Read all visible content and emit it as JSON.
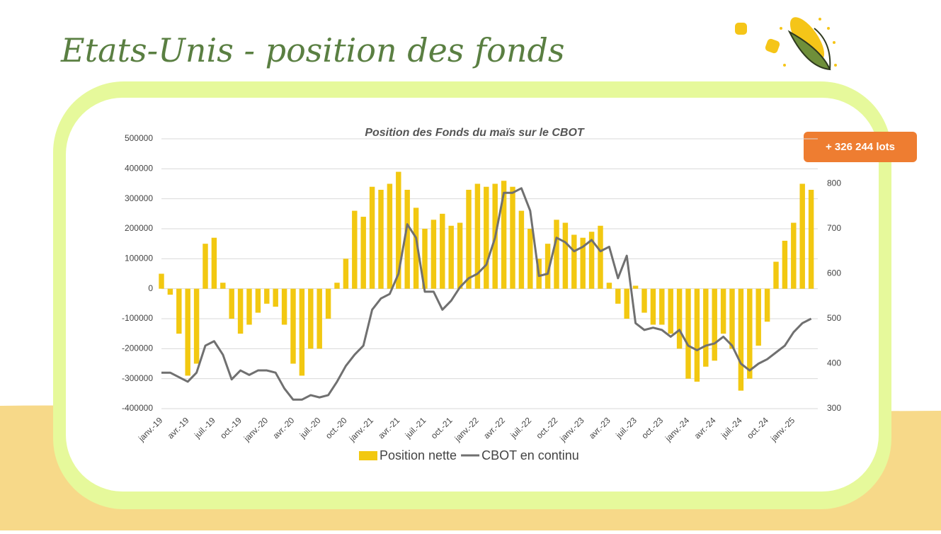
{
  "page_title": "Etats-Unis - position des fonds",
  "badge": "+ 326 244 lots",
  "chart_data": {
    "type": "bar-line",
    "title": "Position des Fonds du maïs sur le CBOT",
    "categories": [
      "janv.-19",
      null,
      null,
      "avr.-19",
      null,
      null,
      "juil.-19",
      null,
      null,
      "oct.-19",
      null,
      null,
      "janv.-20",
      null,
      null,
      "avr.-20",
      null,
      null,
      "juil.-20",
      null,
      null,
      "oct.-20",
      null,
      null,
      "janv.-21",
      null,
      null,
      "avr.-21",
      null,
      null,
      "juil.-21",
      null,
      null,
      "oct.-21",
      null,
      null,
      "janv.-22",
      null,
      null,
      "avr.-22",
      null,
      null,
      "juil.-22",
      null,
      null,
      "oct.-22",
      null,
      null,
      "janv.-23",
      null,
      null,
      "avr.-23",
      null,
      null,
      "juil.-23",
      null,
      null,
      "oct.-23",
      null,
      null,
      "janv.-24",
      null,
      null,
      "avr.-24",
      null,
      null,
      "juil.-24",
      null,
      null,
      "oct.-24",
      null,
      null,
      "janv.-25",
      null,
      null
    ],
    "series": [
      {
        "name": "Position nette",
        "type": "bar",
        "color": "#f2c811",
        "values": [
          50000,
          -20000,
          -150000,
          -290000,
          -250000,
          150000,
          170000,
          20000,
          -100000,
          -150000,
          -120000,
          -80000,
          -50000,
          -60000,
          -120000,
          -250000,
          -290000,
          -200000,
          -200000,
          -100000,
          20000,
          100000,
          260000,
          240000,
          340000,
          330000,
          350000,
          390000,
          330000,
          270000,
          200000,
          230000,
          250000,
          210000,
          220000,
          330000,
          350000,
          340000,
          350000,
          360000,
          340000,
          260000,
          200000,
          100000,
          150000,
          230000,
          220000,
          180000,
          170000,
          190000,
          210000,
          20000,
          -50000,
          -100000,
          10000,
          -80000,
          -120000,
          -120000,
          -150000,
          -200000,
          -300000,
          -310000,
          -260000,
          -240000,
          -150000,
          -200000,
          -340000,
          -300000,
          -190000,
          -110000,
          90000,
          160000,
          220000,
          350000,
          330000
        ]
      },
      {
        "name": "CBOT en continu",
        "type": "line",
        "color": "#707070",
        "axis": "y2",
        "values": [
          380,
          380,
          370,
          360,
          380,
          440,
          450,
          420,
          365,
          385,
          375,
          385,
          385,
          380,
          345,
          320,
          320,
          330,
          325,
          330,
          360,
          395,
          420,
          440,
          520,
          545,
          555,
          600,
          710,
          680,
          560,
          560,
          520,
          540,
          570,
          590,
          600,
          620,
          680,
          780,
          780,
          790,
          740,
          595,
          600,
          680,
          670,
          650,
          660,
          675,
          650,
          660,
          590,
          640,
          490,
          475,
          480,
          475,
          460,
          475,
          440,
          430,
          440,
          445,
          460,
          440,
          400,
          385,
          400,
          410,
          425,
          440,
          470,
          490,
          500
        ]
      }
    ],
    "ylim": [
      -400000,
      500000
    ],
    "yticks": [
      -400000,
      -300000,
      -200000,
      -100000,
      0,
      100000,
      200000,
      300000,
      400000,
      500000
    ],
    "y2lim": [
      300,
      900
    ],
    "y2ticks": [
      300,
      400,
      500,
      600,
      700,
      800
    ],
    "grid": true
  }
}
